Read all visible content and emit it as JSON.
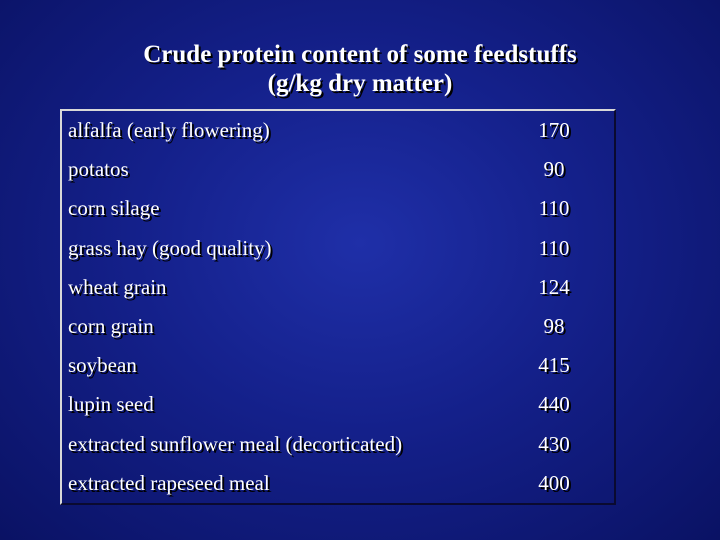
{
  "title": {
    "line1": "Crude protein content of some feedstuffs",
    "line2": "(g/kg dry matter)"
  },
  "table": {
    "rows": [
      {
        "feedstuff": "alfalfa (early flowering)",
        "value": "170"
      },
      {
        "feedstuff": "potatos",
        "value": "90"
      },
      {
        "feedstuff": "corn silage",
        "value": "110"
      },
      {
        "feedstuff": "grass hay (good quality)",
        "value": "110"
      },
      {
        "feedstuff": "wheat grain",
        "value": "124"
      },
      {
        "feedstuff": "corn grain",
        "value": "98"
      },
      {
        "feedstuff": "soybean",
        "value": "415"
      },
      {
        "feedstuff": "lupin seed",
        "value": "440"
      },
      {
        "feedstuff": "extracted sunflower meal (decorticated)",
        "value": "430"
      },
      {
        "feedstuff": "extracted rapeseed meal",
        "value": "400"
      }
    ]
  },
  "colors": {
    "background": "#14208a",
    "text": "#ffffff",
    "text_shadow": "#000000"
  }
}
